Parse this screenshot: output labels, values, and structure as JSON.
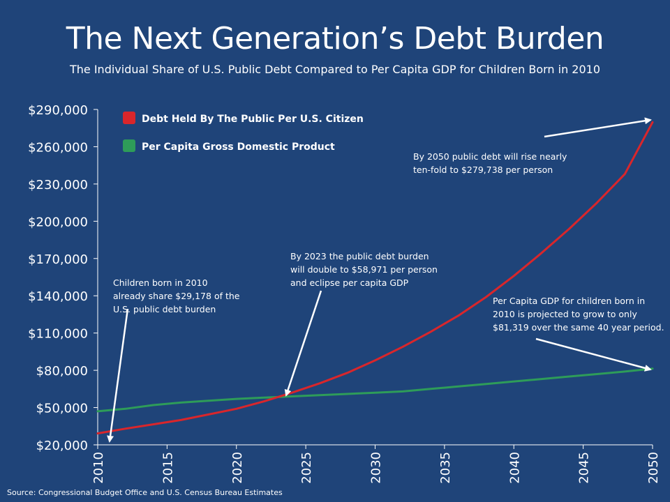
{
  "title": "The Next Generation’s Debt Burden",
  "subtitle": "The Individual Share of U.S. Public Debt Compared to Per Capita GDP for Children Born in 2010",
  "source": "Source:  Congressional Budget Office and U.S. Census Bureau Estimates",
  "colors": {
    "background": "#1f4479",
    "debt": "#d9262b",
    "gdp": "#2e9c59",
    "axis": "#ffffff"
  },
  "chart_data": {
    "type": "line",
    "title": "The Next Generation’s Debt Burden",
    "subtitle": "The Individual Share of U.S. Public Debt Compared to Per Capita GDP for Children Born in 2010",
    "xlabel": "",
    "ylabel": "",
    "xlim": [
      2010,
      2050
    ],
    "ylim": [
      20000,
      290000
    ],
    "x_ticks": [
      "2010",
      "2015",
      "2020",
      "2025",
      "2030",
      "2035",
      "2040",
      "2045",
      "2050"
    ],
    "y_ticks": [
      "$20,000",
      "$50,000",
      "$80,000",
      "$110,000",
      "$140,000",
      "$170,000",
      "$200,000",
      "$230,000",
      "$260,000",
      "$290,000"
    ],
    "grid": false,
    "legend_position": "top-left",
    "x": [
      2010,
      2012,
      2014,
      2016,
      2018,
      2020,
      2022,
      2024,
      2026,
      2028,
      2030,
      2032,
      2034,
      2036,
      2038,
      2040,
      2042,
      2044,
      2046,
      2048,
      2050
    ],
    "series": [
      {
        "name": "Debt Held By The Public Per U.S. Citizen",
        "color": "#d9262b",
        "values": [
          29178,
          33000,
          36500,
          40000,
          44500,
          49000,
          55000,
          62000,
          69500,
          78000,
          88000,
          99000,
          111000,
          124000,
          139000,
          156000,
          174500,
          194000,
          215000,
          238000,
          279738
        ]
      },
      {
        "name": "Per Capita Gross Domestic Product",
        "color": "#2e9c59",
        "values": [
          47000,
          49000,
          52000,
          54000,
          55500,
          57000,
          58000,
          59000,
          60000,
          61000,
          62000,
          63000,
          65000,
          67000,
          69000,
          71000,
          73000,
          75000,
          77000,
          79000,
          81319
        ]
      }
    ],
    "annotations": [
      {
        "lines": [
          "Children born in 2010",
          "already share $29,178 of the",
          "U.S. public debt burden"
        ]
      },
      {
        "lines": [
          "By 2023 the public debt burden",
          "will double to $58,971 per person",
          "and eclipse per capita GDP"
        ]
      },
      {
        "lines": [
          "By 2050 public debt will rise nearly",
          "ten-fold  to $279,738 per person"
        ]
      },
      {
        "lines": [
          "Per Capita GDP for children born in",
          "2010 is projected to grow to only",
          "$81,319 over the same 40 year period."
        ]
      }
    ]
  }
}
